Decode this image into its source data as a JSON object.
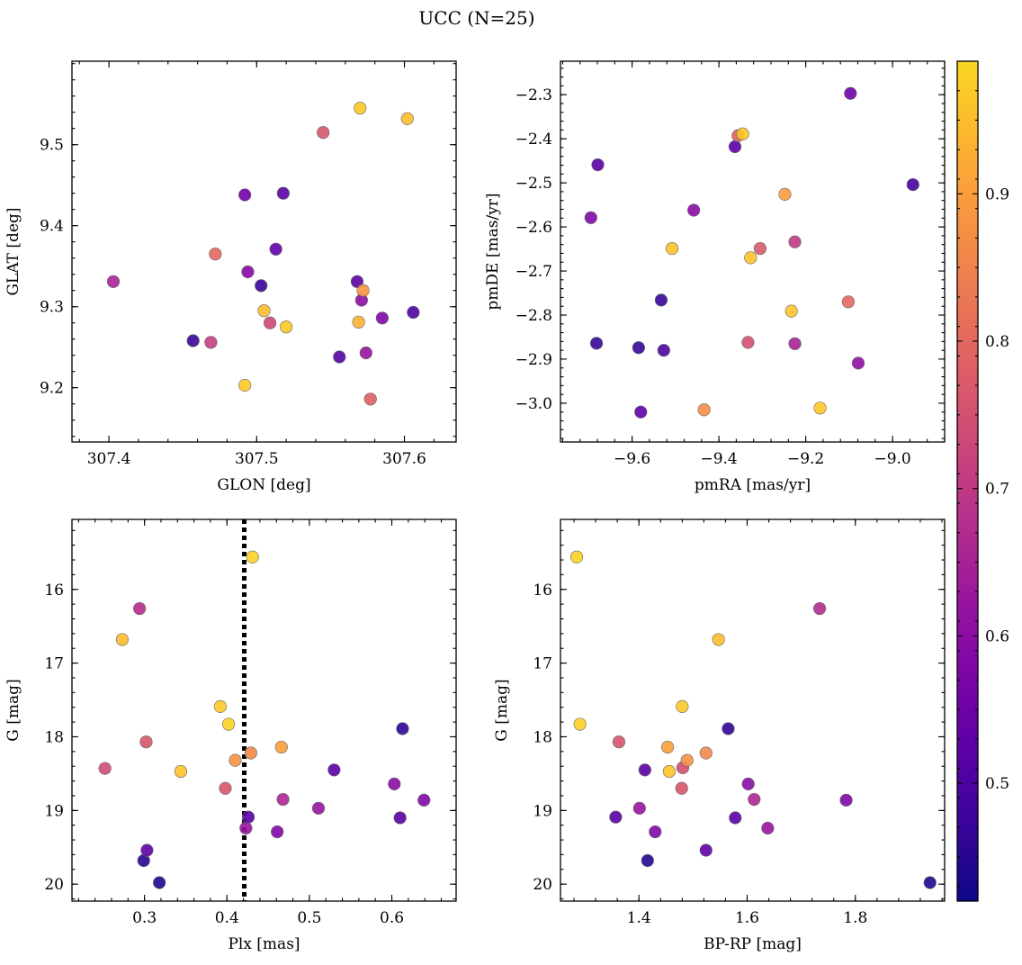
{
  "figure": {
    "title": "UCC (N=25)"
  },
  "colorbar": {
    "range": [
      0.42,
      0.99
    ],
    "ticks": [
      0.5,
      0.6,
      0.7,
      0.8,
      0.9
    ],
    "tick_labels": [
      "0.5",
      "0.6",
      "0.7",
      "0.8",
      "0.9"
    ],
    "colormap": "plasma",
    "colormap_range": [
      0.0,
      0.92
    ]
  },
  "chart_data": [
    {
      "id": "glon-glat",
      "type": "scatter",
      "xlabel": "GLON [deg]",
      "ylabel": "GLAT [deg]",
      "xlim": [
        307.375,
        307.635
      ],
      "ylim": [
        9.133,
        9.603
      ],
      "xticks": [
        307.4,
        307.5,
        307.6
      ],
      "xtick_labels": [
        "307.4",
        "307.5",
        "307.6"
      ],
      "yticks": [
        9.2,
        9.3,
        9.4,
        9.5
      ],
      "ytick_labels": [
        "9.2",
        "9.3",
        "9.4",
        "9.5"
      ],
      "points": [
        {
          "x": 307.403,
          "y": 9.331,
          "c": 0.65
        },
        {
          "x": 307.457,
          "y": 9.258,
          "c": 0.47
        },
        {
          "x": 307.469,
          "y": 9.256,
          "c": 0.71
        },
        {
          "x": 307.472,
          "y": 9.365,
          "c": 0.8
        },
        {
          "x": 307.492,
          "y": 9.438,
          "c": 0.55
        },
        {
          "x": 307.494,
          "y": 9.343,
          "c": 0.59
        },
        {
          "x": 307.492,
          "y": 9.203,
          "c": 0.97
        },
        {
          "x": 307.503,
          "y": 9.326,
          "c": 0.47
        },
        {
          "x": 307.505,
          "y": 9.295,
          "c": 0.95
        },
        {
          "x": 307.509,
          "y": 9.28,
          "c": 0.73
        },
        {
          "x": 307.513,
          "y": 9.371,
          "c": 0.53
        },
        {
          "x": 307.518,
          "y": 9.44,
          "c": 0.52
        },
        {
          "x": 307.52,
          "y": 9.275,
          "c": 0.97
        },
        {
          "x": 307.545,
          "y": 9.515,
          "c": 0.76
        },
        {
          "x": 307.556,
          "y": 9.238,
          "c": 0.51
        },
        {
          "x": 307.568,
          "y": 9.331,
          "c": 0.52
        },
        {
          "x": 307.569,
          "y": 9.281,
          "c": 0.93
        },
        {
          "x": 307.57,
          "y": 9.545,
          "c": 0.97
        },
        {
          "x": 307.571,
          "y": 9.308,
          "c": 0.6
        },
        {
          "x": 307.572,
          "y": 9.32,
          "c": 0.88
        },
        {
          "x": 307.574,
          "y": 9.243,
          "c": 0.62
        },
        {
          "x": 307.577,
          "y": 9.186,
          "c": 0.78
        },
        {
          "x": 307.585,
          "y": 9.286,
          "c": 0.58
        },
        {
          "x": 307.602,
          "y": 9.532,
          "c": 0.95
        },
        {
          "x": 307.606,
          "y": 9.293,
          "c": 0.5
        }
      ]
    },
    {
      "id": "pmra-pmde",
      "type": "scatter",
      "xlabel": "pmRA [mas/yr]",
      "ylabel": "pmDE [mas/yr]",
      "xlim": [
        -9.765,
        -8.88
      ],
      "ylim": [
        -3.088,
        -2.224
      ],
      "xticks": [
        -9.6,
        -9.4,
        -9.2,
        -9.0
      ],
      "xtick_labels": [
        "−9.6",
        "−9.4",
        "−9.2",
        "−9.0"
      ],
      "yticks": [
        -3.0,
        -2.9,
        -2.8,
        -2.7,
        -2.6,
        -2.5,
        -2.4,
        -2.3
      ],
      "ytick_labels": [
        "−3.0",
        "−2.9",
        "−2.8",
        "−2.7",
        "−2.6",
        "−2.5",
        "−2.4",
        "−2.3"
      ],
      "points": [
        {
          "x": -9.695,
          "y": -2.579,
          "c": 0.58
        },
        {
          "x": -9.679,
          "y": -2.459,
          "c": 0.52
        },
        {
          "x": -9.682,
          "y": -2.864,
          "c": 0.47
        },
        {
          "x": -9.585,
          "y": -2.874,
          "c": 0.47
        },
        {
          "x": -9.58,
          "y": -3.02,
          "c": 0.53
        },
        {
          "x": -9.533,
          "y": -2.766,
          "c": 0.47
        },
        {
          "x": -9.527,
          "y": -2.88,
          "c": 0.5
        },
        {
          "x": -9.508,
          "y": -2.649,
          "c": 0.96
        },
        {
          "x": -9.434,
          "y": -3.015,
          "c": 0.87
        },
        {
          "x": -9.458,
          "y": -2.562,
          "c": 0.6
        },
        {
          "x": -9.363,
          "y": -2.418,
          "c": 0.52
        },
        {
          "x": -9.356,
          "y": -2.393,
          "c": 0.78
        },
        {
          "x": -9.345,
          "y": -2.389,
          "c": 0.97
        },
        {
          "x": -9.333,
          "y": -2.862,
          "c": 0.75
        },
        {
          "x": -9.327,
          "y": -2.67,
          "c": 0.96
        },
        {
          "x": -9.305,
          "y": -2.649,
          "c": 0.77
        },
        {
          "x": -9.248,
          "y": -2.526,
          "c": 0.9
        },
        {
          "x": -9.233,
          "y": -2.791,
          "c": 0.96
        },
        {
          "x": -9.225,
          "y": -2.634,
          "c": 0.7
        },
        {
          "x": -9.225,
          "y": -2.865,
          "c": 0.65
        },
        {
          "x": -9.167,
          "y": -3.011,
          "c": 0.97
        },
        {
          "x": -9.102,
          "y": -2.77,
          "c": 0.8
        },
        {
          "x": -9.097,
          "y": -2.297,
          "c": 0.55
        },
        {
          "x": -9.079,
          "y": -2.909,
          "c": 0.61
        },
        {
          "x": -8.953,
          "y": -2.504,
          "c": 0.49
        }
      ]
    },
    {
      "id": "plx-g",
      "type": "scatter",
      "xlabel": "Plx [mas]",
      "ylabel": "G [mag]",
      "xlim": [
        0.212,
        0.678
      ],
      "ylim": [
        15.05,
        20.23
      ],
      "y_inverted": true,
      "xticks": [
        0.3,
        0.4,
        0.5,
        0.6
      ],
      "xtick_labels": [
        "0.3",
        "0.4",
        "0.5",
        "0.6"
      ],
      "yticks": [
        16,
        17,
        18,
        19,
        20
      ],
      "ytick_labels": [
        "16",
        "17",
        "18",
        "19",
        "20"
      ],
      "vline": {
        "x": 0.421,
        "style": "dotted"
      },
      "points": [
        {
          "x": 0.252,
          "y": 18.43,
          "c": 0.74
        },
        {
          "x": 0.273,
          "y": 16.68,
          "c": 0.95
        },
        {
          "x": 0.294,
          "y": 16.26,
          "c": 0.67
        },
        {
          "x": 0.299,
          "y": 19.68,
          "c": 0.45
        },
        {
          "x": 0.302,
          "y": 18.07,
          "c": 0.76
        },
        {
          "x": 0.303,
          "y": 19.54,
          "c": 0.53
        },
        {
          "x": 0.318,
          "y": 19.98,
          "c": 0.44
        },
        {
          "x": 0.344,
          "y": 18.47,
          "c": 0.96
        },
        {
          "x": 0.392,
          "y": 17.59,
          "c": 0.97
        },
        {
          "x": 0.398,
          "y": 18.7,
          "c": 0.76
        },
        {
          "x": 0.402,
          "y": 17.83,
          "c": 0.98
        },
        {
          "x": 0.41,
          "y": 18.32,
          "c": 0.88
        },
        {
          "x": 0.423,
          "y": 19.24,
          "c": 0.62
        },
        {
          "x": 0.426,
          "y": 19.09,
          "c": 0.52
        },
        {
          "x": 0.429,
          "y": 18.22,
          "c": 0.86
        },
        {
          "x": 0.431,
          "y": 15.56,
          "c": 0.98
        },
        {
          "x": 0.461,
          "y": 19.29,
          "c": 0.58
        },
        {
          "x": 0.466,
          "y": 18.14,
          "c": 0.9
        },
        {
          "x": 0.468,
          "y": 18.85,
          "c": 0.66
        },
        {
          "x": 0.511,
          "y": 18.97,
          "c": 0.62
        },
        {
          "x": 0.53,
          "y": 18.45,
          "c": 0.52
        },
        {
          "x": 0.603,
          "y": 18.64,
          "c": 0.6
        },
        {
          "x": 0.61,
          "y": 19.1,
          "c": 0.52
        },
        {
          "x": 0.613,
          "y": 17.89,
          "c": 0.46
        },
        {
          "x": 0.639,
          "y": 18.86,
          "c": 0.58
        }
      ]
    },
    {
      "id": "bprp-g",
      "type": "scatter",
      "xlabel": "BP-RP [mag]",
      "ylabel": "G [mag]",
      "xlim": [
        1.255,
        1.965
      ],
      "ylim": [
        15.05,
        20.23
      ],
      "y_inverted": true,
      "xticks": [
        1.4,
        1.6,
        1.8
      ],
      "xtick_labels": [
        "1.4",
        "1.6",
        "1.8"
      ],
      "yticks": [
        16,
        17,
        18,
        19,
        20
      ],
      "ytick_labels": [
        "16",
        "17",
        "18",
        "19",
        "20"
      ],
      "points": [
        {
          "x": 1.285,
          "y": 15.56,
          "c": 0.98
        },
        {
          "x": 1.291,
          "y": 17.83,
          "c": 0.98
        },
        {
          "x": 1.357,
          "y": 19.09,
          "c": 0.52
        },
        {
          "x": 1.363,
          "y": 18.07,
          "c": 0.76
        },
        {
          "x": 1.401,
          "y": 18.97,
          "c": 0.62
        },
        {
          "x": 1.411,
          "y": 18.45,
          "c": 0.52
        },
        {
          "x": 1.416,
          "y": 19.68,
          "c": 0.45
        },
        {
          "x": 1.43,
          "y": 19.29,
          "c": 0.58
        },
        {
          "x": 1.453,
          "y": 18.14,
          "c": 0.9
        },
        {
          "x": 1.456,
          "y": 18.47,
          "c": 0.96
        },
        {
          "x": 1.479,
          "y": 18.7,
          "c": 0.76
        },
        {
          "x": 1.48,
          "y": 17.59,
          "c": 0.97
        },
        {
          "x": 1.481,
          "y": 18.42,
          "c": 0.74
        },
        {
          "x": 1.489,
          "y": 18.32,
          "c": 0.88
        },
        {
          "x": 1.524,
          "y": 18.22,
          "c": 0.86
        },
        {
          "x": 1.524,
          "y": 19.54,
          "c": 0.53
        },
        {
          "x": 1.547,
          "y": 16.68,
          "c": 0.95
        },
        {
          "x": 1.565,
          "y": 17.89,
          "c": 0.46
        },
        {
          "x": 1.578,
          "y": 19.1,
          "c": 0.52
        },
        {
          "x": 1.602,
          "y": 18.64,
          "c": 0.6
        },
        {
          "x": 1.613,
          "y": 18.85,
          "c": 0.66
        },
        {
          "x": 1.638,
          "y": 19.24,
          "c": 0.62
        },
        {
          "x": 1.734,
          "y": 16.26,
          "c": 0.67
        },
        {
          "x": 1.783,
          "y": 18.86,
          "c": 0.58
        },
        {
          "x": 1.938,
          "y": 19.98,
          "c": 0.44
        }
      ]
    }
  ]
}
